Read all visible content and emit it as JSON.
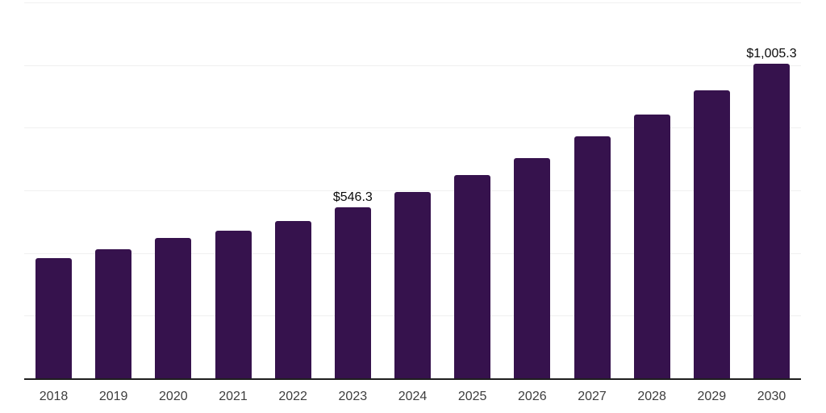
{
  "chart_data": {
    "type": "bar",
    "title": "",
    "xlabel": "",
    "ylabel": "",
    "categories": [
      "2018",
      "2019",
      "2020",
      "2021",
      "2022",
      "2023",
      "2024",
      "2025",
      "2026",
      "2027",
      "2028",
      "2029",
      "2030"
    ],
    "values": [
      385,
      413,
      449,
      470,
      503,
      546.3,
      595,
      650,
      703,
      773,
      842,
      920,
      1005.3
    ],
    "ylim": [
      0,
      1200
    ],
    "gridline_step": 200,
    "grid": true,
    "legend": false,
    "annotations": [
      {
        "category": "2023",
        "label": "$546.3"
      },
      {
        "category": "2030",
        "label": "$1,005.3"
      }
    ]
  },
  "colors": {
    "bar": "#36124d",
    "gridline": "#f0f0f0",
    "axis": "#1f1f1f",
    "tick_label": "#3d3d3d",
    "value_label": "#0a0a0a",
    "background": "#ffffff"
  }
}
